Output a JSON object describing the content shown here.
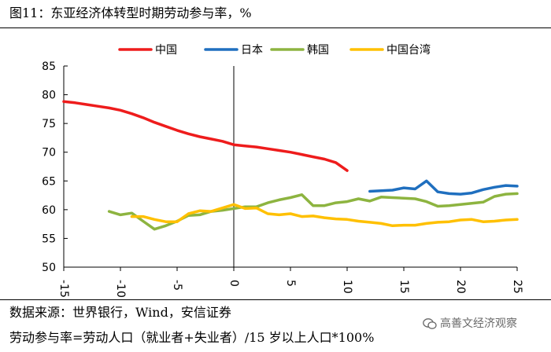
{
  "header": {
    "figure_label": "图11：",
    "title": "东亚经济体转型时期劳动参与率，%"
  },
  "footer": {
    "source": "数据来源：世界银行，Wind，安信证券",
    "formula": "劳动参与率=劳动人口（就业者+失业者）/15 岁以上人口*100%",
    "watermark": "高善文经济观察"
  },
  "chart_data": {
    "type": "line",
    "title": "东亚经济体转型时期劳动参与率，%",
    "xlabel": "",
    "ylabel": "",
    "xlim": [
      -15,
      25
    ],
    "ylim": [
      50,
      85
    ],
    "xticks": [
      -15,
      -10,
      -5,
      0,
      5,
      10,
      15,
      20,
      25
    ],
    "yticks": [
      50,
      55,
      60,
      65,
      70,
      75,
      80,
      85
    ],
    "legend_position": "top",
    "series": [
      {
        "name": "中国",
        "color": "#ee1c1c",
        "x": [
          -15,
          -14,
          -13,
          -12,
          -11,
          -10,
          -9,
          -8,
          -7,
          -6,
          -5,
          -4,
          -3,
          -2,
          -1,
          0,
          1,
          2,
          3,
          4,
          5,
          6,
          7,
          8,
          9,
          10
        ],
        "y": [
          78.8,
          78.6,
          78.3,
          78.0,
          77.7,
          77.3,
          76.7,
          76.0,
          75.2,
          74.5,
          73.8,
          73.2,
          72.7,
          72.3,
          71.9,
          71.3,
          71.1,
          70.9,
          70.6,
          70.3,
          70.0,
          69.6,
          69.2,
          68.8,
          68.2,
          66.8
        ]
      },
      {
        "name": "日本",
        "color": "#1f6fbf",
        "x": [
          12,
          13,
          14,
          15,
          16,
          17,
          18,
          19,
          20,
          21,
          22,
          23,
          24,
          25
        ],
        "y": [
          63.2,
          63.3,
          63.4,
          63.8,
          63.6,
          65.0,
          63.1,
          62.8,
          62.7,
          62.9,
          63.5,
          63.9,
          64.2,
          64.1
        ]
      },
      {
        "name": "韩国",
        "color": "#8db440",
        "x": [
          -11,
          -10,
          -9,
          -8,
          -7,
          -6,
          -5,
          -4,
          -3,
          -2,
          -1,
          0,
          1,
          2,
          3,
          4,
          5,
          6,
          7,
          8,
          9,
          10,
          11,
          12,
          13,
          14,
          15,
          16,
          17,
          18,
          19,
          20,
          21,
          22,
          23,
          24,
          25
        ],
        "y": [
          59.7,
          59.1,
          59.4,
          58.0,
          56.6,
          57.2,
          58.0,
          59.0,
          59.1,
          59.7,
          59.9,
          60.2,
          60.5,
          60.5,
          61.2,
          61.7,
          62.1,
          62.6,
          60.7,
          60.7,
          61.2,
          61.4,
          61.9,
          61.5,
          62.2,
          62.1,
          62.0,
          61.9,
          61.4,
          60.6,
          60.7,
          60.9,
          61.1,
          61.3,
          62.3,
          62.7,
          62.8
        ]
      },
      {
        "name": "中国台湾",
        "color": "#ffc000",
        "x": [
          -9,
          -8,
          -7,
          -6,
          -5,
          -4,
          -3,
          -2,
          -1,
          0,
          1,
          2,
          3,
          4,
          5,
          6,
          7,
          8,
          9,
          10,
          11,
          12,
          13,
          14,
          15,
          16,
          17,
          18,
          19,
          20,
          21,
          22,
          23,
          24,
          25
        ],
        "y": [
          58.8,
          58.8,
          58.3,
          57.9,
          57.9,
          59.3,
          59.8,
          59.7,
          60.3,
          60.9,
          60.2,
          60.3,
          59.3,
          59.1,
          59.3,
          58.8,
          58.9,
          58.6,
          58.4,
          58.3,
          58.0,
          57.8,
          57.6,
          57.2,
          57.3,
          57.3,
          57.6,
          57.8,
          57.9,
          58.2,
          58.3,
          57.9,
          58.0,
          58.2,
          58.3
        ]
      }
    ]
  }
}
